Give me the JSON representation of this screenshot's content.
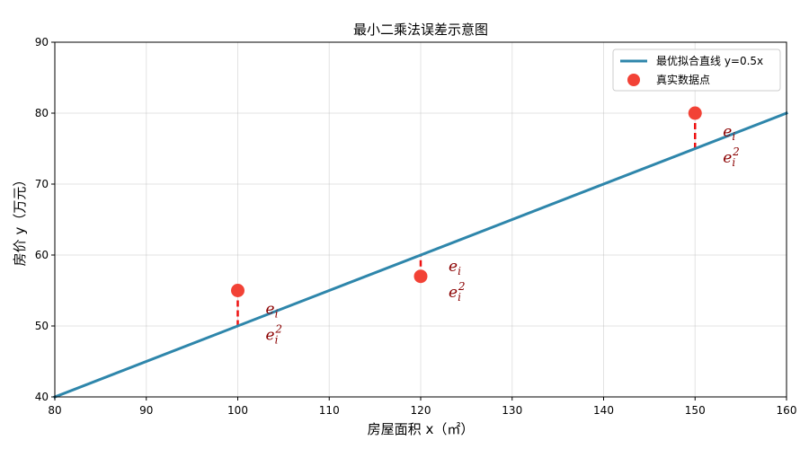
{
  "chart_data": {
    "type": "scatter",
    "title": "最小二乘法误差示意图",
    "xlabel": "房屋面积 x（㎡）",
    "ylabel": "房价 y（万元）",
    "xlim": [
      80,
      160
    ],
    "ylim": [
      40,
      90
    ],
    "xticks": [
      "80",
      "90",
      "100",
      "110",
      "120",
      "130",
      "140",
      "150",
      "160"
    ],
    "yticks": [
      "40",
      "50",
      "60",
      "70",
      "80",
      "90"
    ],
    "grid": true,
    "legend_position": "top-right",
    "fit_line": {
      "label": "最优拟合直线 y=0.5x",
      "slope": 0.5,
      "intercept": 0,
      "color": "#2e86ab"
    },
    "points": {
      "label": "真实数据点",
      "color": "#f24236",
      "x": [
        100,
        120,
        150
      ],
      "y": [
        55,
        57,
        80
      ]
    },
    "residual_color": "#ee1111",
    "annotation_color": "#8b0000",
    "annotations": [
      {
        "x": 100,
        "error": "e",
        "error_sub": "i",
        "squared": "e",
        "squared_sub": "i",
        "squared_sup": "2"
      },
      {
        "x": 120,
        "error": "e",
        "error_sub": "i",
        "squared": "e",
        "squared_sub": "i",
        "squared_sup": "2"
      },
      {
        "x": 150,
        "error": "e",
        "error_sub": "i",
        "squared": "e",
        "squared_sub": "i",
        "squared_sup": "2"
      }
    ]
  }
}
